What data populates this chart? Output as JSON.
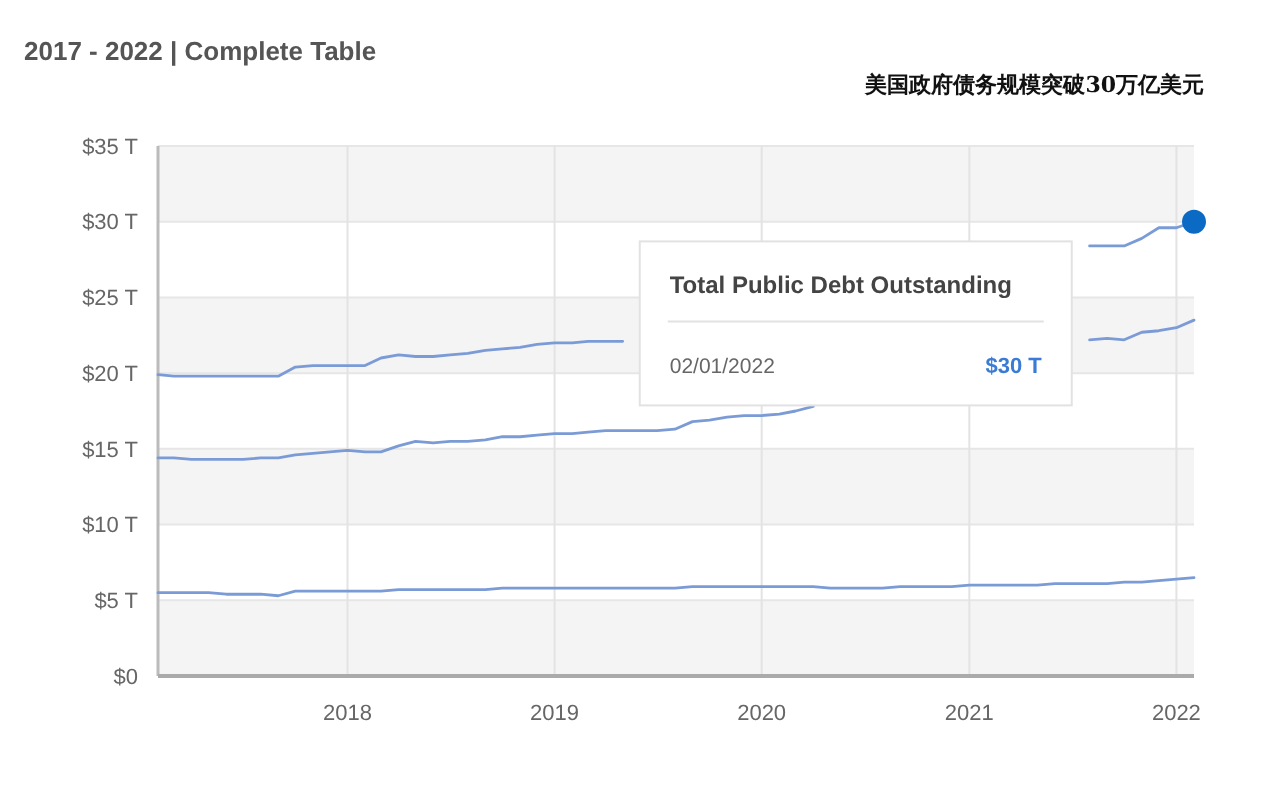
{
  "chart_data": {
    "type": "line",
    "title": "2017 - 2022 | Complete Table",
    "subtitle": "美国政府债务规模突破30万亿美元",
    "x": [
      "2017-02",
      "2017-03",
      "2017-04",
      "2017-05",
      "2017-06",
      "2017-07",
      "2017-08",
      "2017-09",
      "2017-10",
      "2017-11",
      "2017-12",
      "2018-01",
      "2018-02",
      "2018-03",
      "2018-04",
      "2018-05",
      "2018-06",
      "2018-07",
      "2018-08",
      "2018-09",
      "2018-10",
      "2018-11",
      "2018-12",
      "2019-01",
      "2019-02",
      "2019-03",
      "2019-04",
      "2019-05",
      "2019-06",
      "2019-07",
      "2019-08",
      "2019-09",
      "2019-10",
      "2019-11",
      "2019-12",
      "2020-01",
      "2020-02",
      "2020-03",
      "2020-04",
      "2020-05",
      "2020-06",
      "2020-07",
      "2020-08",
      "2020-09",
      "2020-10",
      "2020-11",
      "2020-12",
      "2021-01",
      "2021-02",
      "2021-03",
      "2021-04",
      "2021-05",
      "2021-06",
      "2021-07",
      "2021-08",
      "2021-09",
      "2021-10",
      "2021-11",
      "2021-12",
      "2022-01",
      "2022-02"
    ],
    "series": [
      {
        "color": "#7b9bd6",
        "values": [
          19.9,
          19.8,
          19.8,
          19.8,
          19.8,
          19.8,
          19.8,
          19.8,
          20.4,
          20.5,
          20.5,
          20.5,
          20.5,
          21.0,
          21.2,
          21.1,
          21.1,
          21.2,
          21.3,
          21.5,
          21.6,
          21.7,
          21.9,
          22.0,
          22.0,
          22.1,
          22.1,
          22.1,
          null,
          null,
          null,
          null,
          null,
          null,
          null,
          null,
          null,
          null,
          null,
          null,
          null,
          null,
          null,
          null,
          null,
          null,
          null,
          null,
          null,
          null,
          null,
          null,
          null,
          null,
          28.4,
          28.4,
          28.4,
          28.9,
          29.6,
          29.6,
          30.0
        ]
      },
      {
        "color": "#7b9bd6",
        "values": [
          14.4,
          14.4,
          14.3,
          14.3,
          14.3,
          14.3,
          14.4,
          14.4,
          14.6,
          14.7,
          14.8,
          14.9,
          14.8,
          14.8,
          15.2,
          15.5,
          15.4,
          15.5,
          15.5,
          15.6,
          15.8,
          15.8,
          15.9,
          16.0,
          16.0,
          16.1,
          16.2,
          16.2,
          16.2,
          16.2,
          16.3,
          16.8,
          16.9,
          17.1,
          17.2,
          17.2,
          17.3,
          17.5,
          17.8,
          null,
          null,
          null,
          null,
          null,
          null,
          null,
          null,
          null,
          null,
          null,
          null,
          null,
          null,
          null,
          22.2,
          22.3,
          22.2,
          22.7,
          22.8,
          23.0,
          23.5
        ]
      },
      {
        "color": "#7b9bd6",
        "values": [
          5.5,
          5.5,
          5.5,
          5.5,
          5.4,
          5.4,
          5.4,
          5.3,
          5.6,
          5.6,
          5.6,
          5.6,
          5.6,
          5.6,
          5.7,
          5.7,
          5.7,
          5.7,
          5.7,
          5.7,
          5.8,
          5.8,
          5.8,
          5.8,
          5.8,
          5.8,
          5.8,
          5.8,
          5.8,
          5.8,
          5.8,
          5.9,
          5.9,
          5.9,
          5.9,
          5.9,
          5.9,
          5.9,
          5.9,
          5.8,
          5.8,
          5.8,
          5.8,
          5.9,
          5.9,
          5.9,
          5.9,
          6.0,
          6.0,
          6.0,
          6.0,
          6.0,
          6.1,
          6.1,
          6.1,
          6.1,
          6.2,
          6.2,
          6.3,
          6.4,
          6.5
        ]
      },
      {
        "type": "scatter",
        "marker": "circle",
        "color": "#0b6bc4",
        "x": [
          "2022-02"
        ],
        "values": [
          30.0
        ]
      }
    ],
    "xlim": [
      "2017-02",
      "2022-02"
    ],
    "xticks": [
      {
        "value": "2018",
        "label": "2018"
      },
      {
        "value": "2019",
        "label": "2019"
      },
      {
        "value": "2020",
        "label": "2020"
      },
      {
        "value": "2021",
        "label": "2021"
      },
      {
        "value": "2022",
        "label": "2022"
      }
    ],
    "ylim": [
      0,
      35
    ],
    "yticks": [
      {
        "value": 0,
        "label": "$0"
      },
      {
        "value": 5,
        "label": "$5 T"
      },
      {
        "value": 10,
        "label": "$10 T"
      },
      {
        "value": 15,
        "label": "$15 T"
      },
      {
        "value": 20,
        "label": "$20 T"
      },
      {
        "value": 25,
        "label": "$25 T"
      },
      {
        "value": 30,
        "label": "$30 T"
      },
      {
        "value": 35,
        "label": "$35 T"
      }
    ],
    "grid": true,
    "marker": "none",
    "line_style": "solid",
    "annotations": [
      "Total Public Debt Outstanding",
      "02/01/2022",
      "$30 T"
    ]
  }
}
